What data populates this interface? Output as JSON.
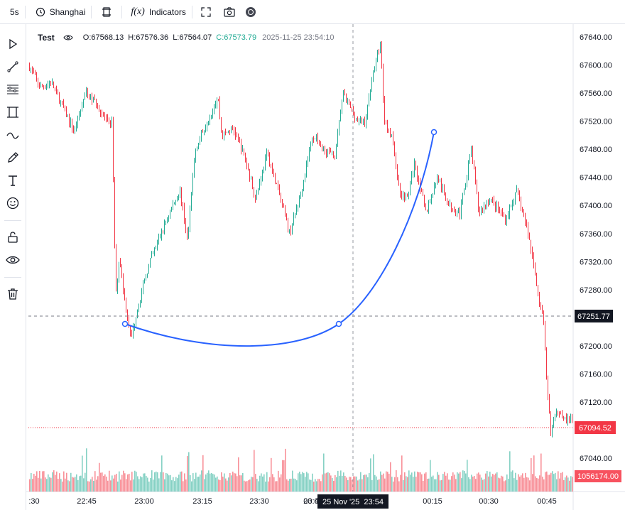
{
  "toolbar": {
    "interval": "5s",
    "timezone": "Shanghai",
    "indicators_label": "Indicators",
    "fx_label": "f(x)"
  },
  "left_tools": [
    "cursor-icon",
    "trendline-icon",
    "fib-icon",
    "channel-icon",
    "curve-icon",
    "brush-icon",
    "text-icon",
    "emoji-icon",
    "lock-icon",
    "eye-icon",
    "trash-icon"
  ],
  "legend": {
    "symbol": "Test",
    "open": "O:67568.13",
    "high": "H:67576.36",
    "low": "L:67564.07",
    "close": "C:67573.79",
    "datetime": "2025-11-25 23:54:10"
  },
  "colors": {
    "up": "#22ab94",
    "down": "#f23645",
    "curve": "#2962ff"
  },
  "chart_data": {
    "type": "candlestick",
    "y_ticks": [
      "67640.00",
      "67600.00",
      "67560.00",
      "67520.00",
      "67480.00",
      "67440.00",
      "67400.00",
      "67360.00",
      "67320.00",
      "67280.00",
      "67240.00",
      "67200.00",
      "67160.00",
      "67120.00",
      "67080.00",
      "67040.00"
    ],
    "ylim": [
      67021,
      67646
    ],
    "x_ticks": [
      ":30",
      "22:45",
      "23:00",
      "23:15",
      "23:30",
      "23:45",
      "00:00",
      "00:15",
      "00:30",
      "00:45"
    ],
    "crosshair": {
      "price_label": "67251.77",
      "time_label": "25 Nov '25  23:54"
    },
    "last_price_label": "67094.52",
    "volume_label": "1056174.00",
    "series": [
      {
        "t": "22:30",
        "y": 67600
      },
      {
        "t": "22:33",
        "y": 67568
      },
      {
        "t": "22:36",
        "y": 67575
      },
      {
        "t": "22:39",
        "y": 67540
      },
      {
        "t": "22:42",
        "y": 67505
      },
      {
        "t": "22:45",
        "y": 67560
      },
      {
        "t": "22:48",
        "y": 67545
      },
      {
        "t": "22:51",
        "y": 67515
      },
      {
        "t": "22:52",
        "y": 67520
      },
      {
        "t": "22:53",
        "y": 67270
      },
      {
        "t": "22:54",
        "y": 67330
      },
      {
        "t": "22:55",
        "y": 67280
      },
      {
        "t": "22:57",
        "y": 67210
      },
      {
        "t": "22:59",
        "y": 67260
      },
      {
        "t": "23:00",
        "y": 67280
      },
      {
        "t": "23:02",
        "y": 67320
      },
      {
        "t": "23:05",
        "y": 67360
      },
      {
        "t": "23:08",
        "y": 67400
      },
      {
        "t": "23:10",
        "y": 67420
      },
      {
        "t": "23:12",
        "y": 67350
      },
      {
        "t": "23:14",
        "y": 67480
      },
      {
        "t": "23:18",
        "y": 67530
      },
      {
        "t": "23:20",
        "y": 67555
      },
      {
        "t": "23:21",
        "y": 67500
      },
      {
        "t": "23:24",
        "y": 67510
      },
      {
        "t": "23:27",
        "y": 67470
      },
      {
        "t": "23:30",
        "y": 67410
      },
      {
        "t": "23:33",
        "y": 67475
      },
      {
        "t": "23:36",
        "y": 67420
      },
      {
        "t": "23:39",
        "y": 67360
      },
      {
        "t": "23:42",
        "y": 67420
      },
      {
        "t": "23:45",
        "y": 67500
      },
      {
        "t": "23:48",
        "y": 67480
      },
      {
        "t": "23:51",
        "y": 67470
      },
      {
        "t": "23:53",
        "y": 67560
      },
      {
        "t": "23:55",
        "y": 67540
      },
      {
        "t": "23:57",
        "y": 67520
      },
      {
        "t": "23:59",
        "y": 67520
      },
      {
        "t": "00:01",
        "y": 67590
      },
      {
        "t": "00:03",
        "y": 67630
      },
      {
        "t": "00:04",
        "y": 67520
      },
      {
        "t": "00:06",
        "y": 67500
      },
      {
        "t": "00:08",
        "y": 67420
      },
      {
        "t": "00:10",
        "y": 67410
      },
      {
        "t": "00:12",
        "y": 67460
      },
      {
        "t": "00:15",
        "y": 67390
      },
      {
        "t": "00:18",
        "y": 67440
      },
      {
        "t": "00:21",
        "y": 67400
      },
      {
        "t": "00:24",
        "y": 67390
      },
      {
        "t": "00:27",
        "y": 67480
      },
      {
        "t": "00:29",
        "y": 67390
      },
      {
        "t": "00:32",
        "y": 67410
      },
      {
        "t": "00:36",
        "y": 67380
      },
      {
        "t": "00:39",
        "y": 67420
      },
      {
        "t": "00:42",
        "y": 67360
      },
      {
        "t": "00:44",
        "y": 67300
      },
      {
        "t": "00:45",
        "y": 67260
      },
      {
        "t": "00:46",
        "y": 67240
      },
      {
        "t": "00:47",
        "y": 67140
      },
      {
        "t": "00:48",
        "y": 67080
      },
      {
        "t": "00:50",
        "y": 67110
      },
      {
        "t": "00:52",
        "y": 67095
      }
    ]
  }
}
